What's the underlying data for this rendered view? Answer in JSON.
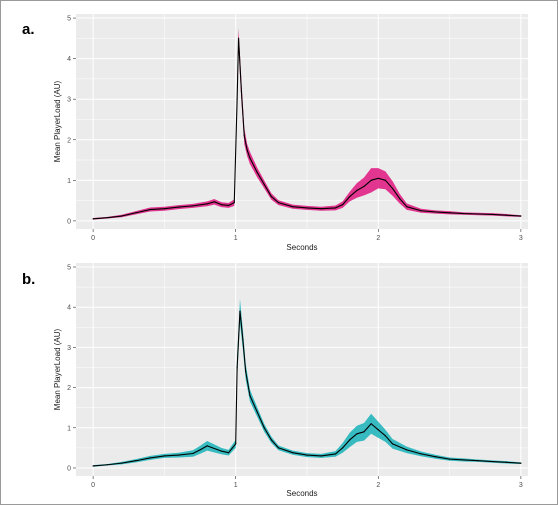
{
  "colors": {
    "panel_bg": "#ebebeb",
    "grid": "#ffffff",
    "line": "#000000",
    "band_a": "#e0157f",
    "band_b": "#17b3b9",
    "tick_text": "#4d4d4d"
  },
  "chart_data": [
    {
      "panel_label": "a.",
      "type": "line",
      "xlabel": "Seconds",
      "ylabel": "Mean PlayerLoad (AU)",
      "xlim": [
        -0.12,
        3.05
      ],
      "ylim": [
        -0.2,
        5.1
      ],
      "x_ticks": [
        "0",
        "1",
        "2",
        "3"
      ],
      "y_ticks": [
        "0",
        "1",
        "2",
        "3",
        "4",
        "5"
      ],
      "band_color": "#e0157f",
      "grid": true,
      "series": [
        {
          "x": [
            0,
            0.1,
            0.2,
            0.3,
            0.4,
            0.5,
            0.6,
            0.7,
            0.8,
            0.85,
            0.9,
            0.95,
            0.99,
            1.01,
            1.02,
            1.04,
            1.06,
            1.08,
            1.1,
            1.15,
            1.2,
            1.25,
            1.3,
            1.4,
            1.5,
            1.6,
            1.7,
            1.75,
            1.8,
            1.85,
            1.9,
            1.95,
            2.0,
            2.05,
            2.1,
            2.15,
            2.2,
            2.3,
            2.4,
            2.5,
            2.6,
            2.7,
            2.8,
            2.9,
            3.0
          ],
          "values": [
            0.05,
            0.08,
            0.12,
            0.2,
            0.28,
            0.3,
            0.34,
            0.37,
            0.42,
            0.47,
            0.4,
            0.38,
            0.45,
            3.0,
            4.5,
            3.2,
            2.1,
            1.75,
            1.55,
            1.2,
            0.9,
            0.6,
            0.45,
            0.35,
            0.32,
            0.3,
            0.32,
            0.4,
            0.6,
            0.75,
            0.85,
            1.0,
            1.05,
            1.0,
            0.8,
            0.55,
            0.35,
            0.25,
            0.22,
            0.2,
            0.18,
            0.17,
            0.16,
            0.14,
            0.12
          ],
          "spread": [
            0.02,
            0.02,
            0.03,
            0.04,
            0.05,
            0.05,
            0.05,
            0.05,
            0.06,
            0.07,
            0.06,
            0.06,
            0.08,
            0.3,
            0.25,
            0.25,
            0.2,
            0.15,
            0.15,
            0.12,
            0.1,
            0.08,
            0.06,
            0.05,
            0.05,
            0.05,
            0.06,
            0.08,
            0.12,
            0.18,
            0.22,
            0.3,
            0.25,
            0.22,
            0.18,
            0.12,
            0.08,
            0.05,
            0.04,
            0.04,
            0.03,
            0.03,
            0.03,
            0.03,
            0.02
          ]
        }
      ]
    },
    {
      "panel_label": "b.",
      "type": "line",
      "xlabel": "Seconds",
      "ylabel": "Mean PlayerLoad (AU)",
      "xlim": [
        -0.12,
        3.05
      ],
      "ylim": [
        -0.2,
        5.1
      ],
      "x_ticks": [
        "0",
        "1",
        "2",
        "3"
      ],
      "y_ticks": [
        "0",
        "1",
        "2",
        "3",
        "4",
        "5"
      ],
      "band_color": "#17b3b9",
      "grid": true,
      "series": [
        {
          "x": [
            0,
            0.1,
            0.2,
            0.3,
            0.4,
            0.5,
            0.6,
            0.7,
            0.75,
            0.8,
            0.9,
            0.95,
            1.0,
            1.01,
            1.03,
            1.05,
            1.07,
            1.1,
            1.15,
            1.2,
            1.25,
            1.3,
            1.4,
            1.5,
            1.6,
            1.7,
            1.75,
            1.8,
            1.85,
            1.9,
            1.95,
            2.0,
            2.05,
            2.1,
            2.2,
            2.3,
            2.4,
            2.5,
            2.6,
            2.7,
            2.8,
            2.9,
            3.0
          ],
          "values": [
            0.05,
            0.08,
            0.12,
            0.18,
            0.25,
            0.3,
            0.32,
            0.36,
            0.45,
            0.55,
            0.42,
            0.38,
            0.6,
            2.5,
            3.9,
            3.2,
            2.4,
            1.8,
            1.4,
            1.0,
            0.7,
            0.5,
            0.38,
            0.32,
            0.3,
            0.35,
            0.5,
            0.7,
            0.85,
            0.9,
            1.1,
            0.95,
            0.8,
            0.6,
            0.45,
            0.35,
            0.28,
            0.22,
            0.2,
            0.18,
            0.16,
            0.14,
            0.12
          ],
          "spread": [
            0.02,
            0.02,
            0.03,
            0.04,
            0.05,
            0.05,
            0.06,
            0.08,
            0.1,
            0.12,
            0.08,
            0.07,
            0.1,
            0.3,
            0.3,
            0.25,
            0.2,
            0.15,
            0.12,
            0.1,
            0.08,
            0.06,
            0.05,
            0.05,
            0.05,
            0.07,
            0.12,
            0.18,
            0.2,
            0.22,
            0.25,
            0.2,
            0.15,
            0.12,
            0.08,
            0.06,
            0.05,
            0.04,
            0.04,
            0.03,
            0.03,
            0.03,
            0.02
          ]
        }
      ]
    }
  ]
}
